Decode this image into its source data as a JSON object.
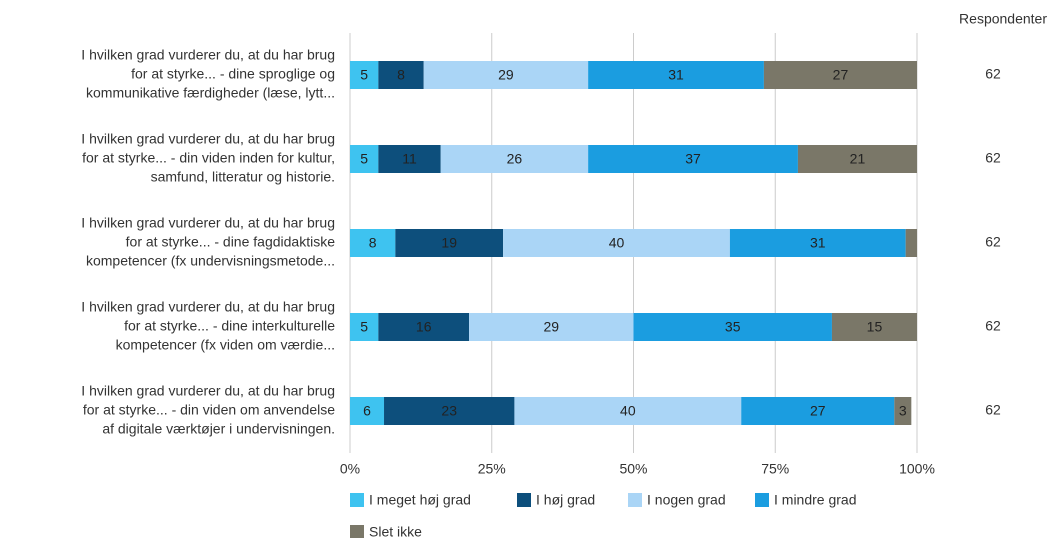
{
  "chart_data": {
    "type": "bar",
    "orientation": "horizontal",
    "stacked": true,
    "categories": [
      [
        "I hvilken grad vurderer du, at du har brug",
        "for at styrke... - dine sproglige og",
        "kommunikative færdigheder (læse, lytt..."
      ],
      [
        "I hvilken grad vurderer du, at du har brug",
        "for at styrke... - din viden inden for kultur,",
        "samfund, litteratur og historie."
      ],
      [
        "I hvilken grad vurderer du, at du har brug",
        "for at styrke... - dine fagdidaktiske",
        "kompetencer (fx undervisningsmetode..."
      ],
      [
        "I hvilken grad vurderer du, at du har brug",
        "for at styrke... - dine interkulturelle",
        "kompetencer (fx viden om værdie..."
      ],
      [
        "I hvilken grad vurderer du, at du har brug",
        "for at styrke... - din viden om anvendelse",
        "af digitale værktøjer i undervisningen."
      ]
    ],
    "series": [
      {
        "name": "I meget høj grad",
        "color": "#3ec3f0",
        "values": [
          5,
          5,
          8,
          5,
          6
        ]
      },
      {
        "name": "I høj grad",
        "color": "#0d4f7c",
        "values": [
          8,
          11,
          19,
          16,
          23
        ]
      },
      {
        "name": "I nogen grad",
        "color": "#aad5f6",
        "values": [
          29,
          26,
          40,
          29,
          40
        ]
      },
      {
        "name": "I mindre grad",
        "color": "#1b9de0",
        "values": [
          31,
          37,
          31,
          35,
          27
        ]
      },
      {
        "name": "Slet ikke",
        "color": "#7a7768",
        "values": [
          27,
          21,
          2,
          15,
          3
        ]
      }
    ],
    "xlim": [
      0,
      100
    ],
    "xticks": [
      {
        "value": 0,
        "label": "0%"
      },
      {
        "value": 25,
        "label": "25%"
      },
      {
        "value": 50,
        "label": "50%"
      },
      {
        "value": 75,
        "label": "75%"
      },
      {
        "value": 100,
        "label": "100%"
      }
    ],
    "grid": true,
    "legend": "bottom",
    "respondents_title": "Respondenter",
    "respondents": [
      62,
      62,
      62,
      62,
      62
    ]
  }
}
